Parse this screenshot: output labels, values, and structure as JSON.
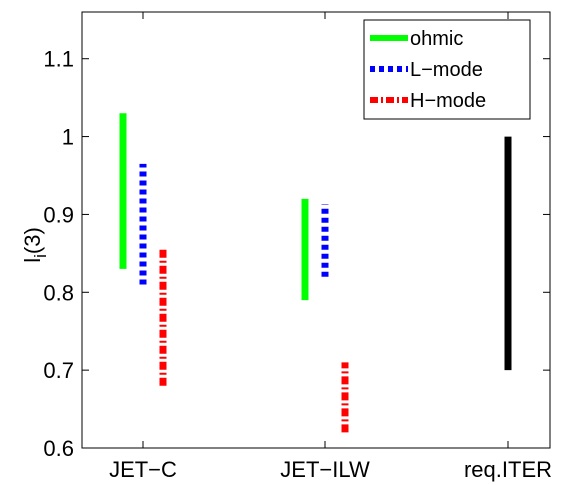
{
  "chart_data": {
    "type": "range",
    "title": "",
    "xlabel": "",
    "ylabel": {
      "main": "l",
      "sub": "i",
      "suffix": "(3)"
    },
    "ylim": [
      0.6,
      1.16
    ],
    "yticks": [
      0.6,
      0.7,
      0.8,
      0.9,
      1,
      1.1
    ],
    "yticklabels": [
      "0.6",
      "0.7",
      "0.8",
      "0.9",
      "1",
      "1.1"
    ],
    "categories": [
      "JET−C",
      "JET−ILW",
      "req.ITER"
    ],
    "grid": false,
    "legend": {
      "position": "top-right"
    },
    "series": [
      {
        "name": "ohmic",
        "color": "#00ff00",
        "style": "solid",
        "ranges": [
          {
            "category": 0,
            "low": 0.83,
            "high": 1.03
          },
          {
            "category": 1,
            "low": 0.79,
            "high": 0.92
          }
        ]
      },
      {
        "name": "L−mode",
        "color": "#0000ff",
        "style": "dotted",
        "ranges": [
          {
            "category": 0,
            "low": 0.81,
            "high": 0.965
          },
          {
            "category": 1,
            "low": 0.82,
            "high": 0.913
          }
        ]
      },
      {
        "name": "H−mode",
        "color": "#ff0000",
        "style": "dashdot",
        "ranges": [
          {
            "category": 0,
            "low": 0.68,
            "high": 0.857
          },
          {
            "category": 1,
            "low": 0.62,
            "high": 0.71
          }
        ]
      },
      {
        "name": "",
        "color": "#000000",
        "style": "solid",
        "ranges": [
          {
            "category": 2,
            "low": 0.7,
            "high": 1.0
          }
        ]
      }
    ]
  }
}
